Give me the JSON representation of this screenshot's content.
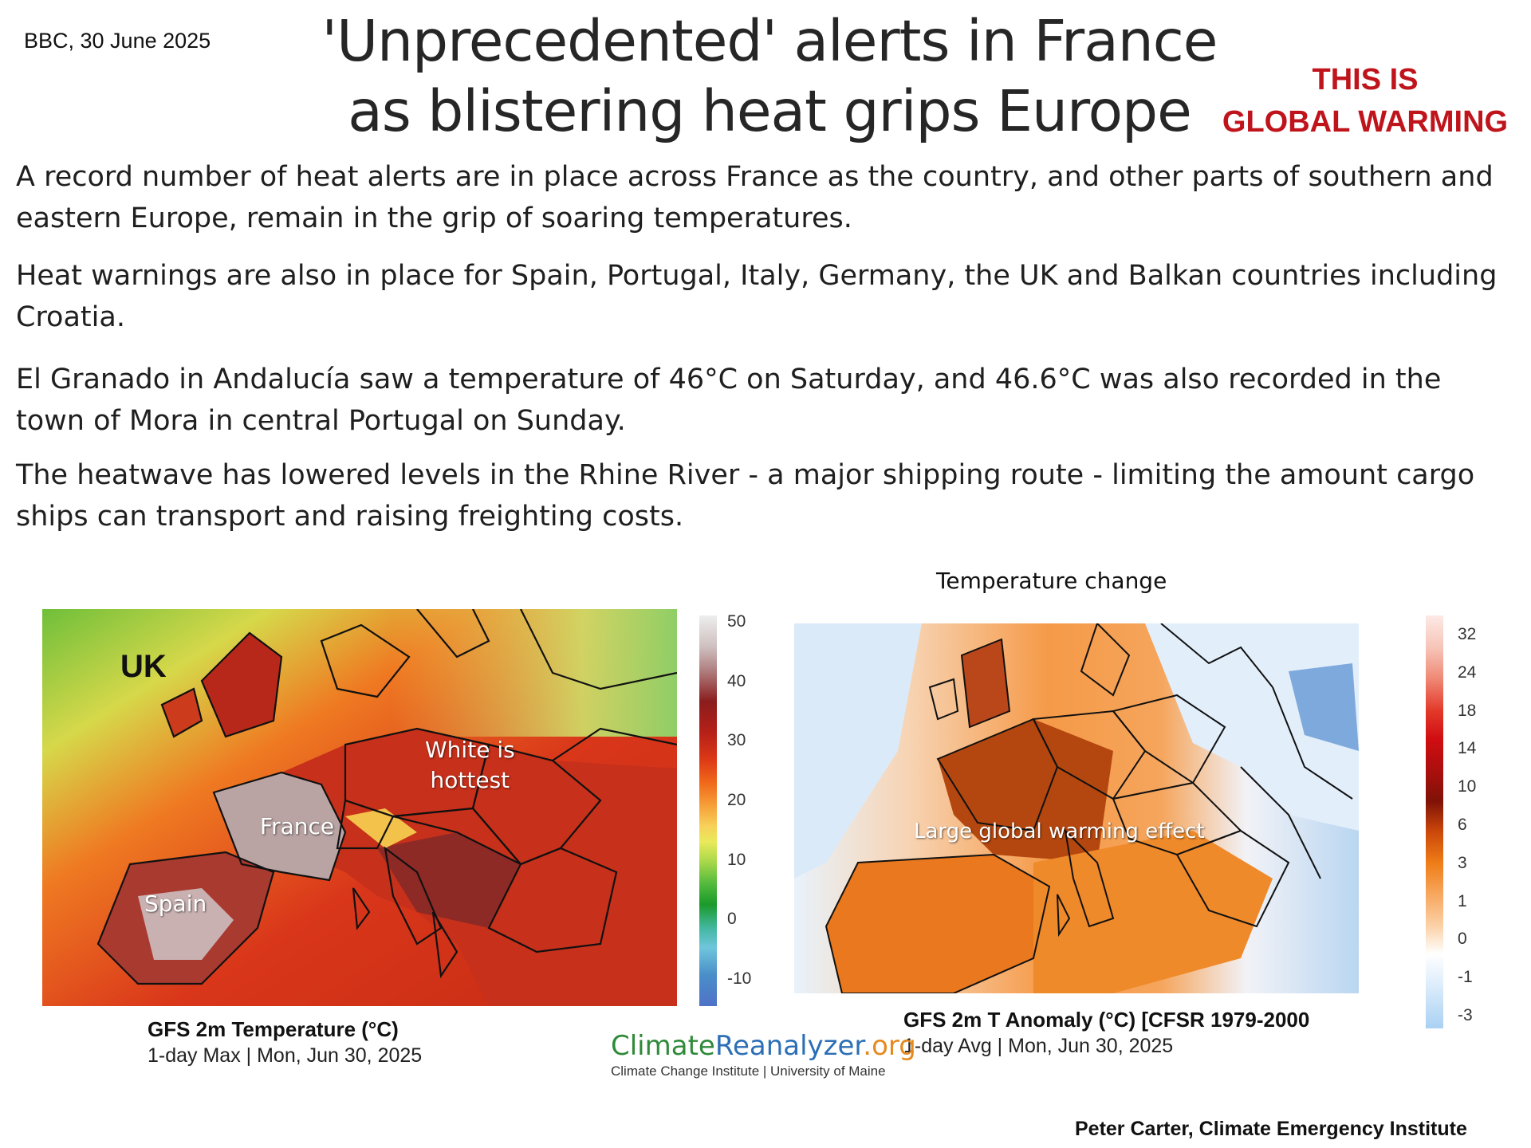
{
  "source_line": "BBC, 30 June 2025",
  "headline": {
    "line1": "'Unprecedented' alerts in France",
    "line2": "as blistering heat grips Europe"
  },
  "callout": {
    "line1": "THIS IS",
    "line2": "GLOBAL WARMING",
    "color": "#c0141c"
  },
  "paragraphs": [
    "A record number of heat alerts are in place across France as the country, and other parts of southern and eastern Europe, remain in the grip of soaring temperatures.",
    "Heat warnings are also in place for Spain, Portugal, Italy, Germany, the UK and Balkan countries including Croatia.",
    "El Granado in Andalucía saw a temperature of 46°C on Saturday, and 46.6°C was also recorded in the town of Mora in central Portugal on Sunday.",
    "The heatwave has lowered levels in the Rhine River - a major shipping route - limiting the amount cargo ships can transport and raising freighting costs."
  ],
  "temperature_map": {
    "labels": {
      "uk": "UK",
      "hottest_line1": "White is",
      "hottest_line2": "hottest",
      "france": "France",
      "spain": "Spain"
    },
    "colorbar_ticks": [
      "50",
      "40",
      "30",
      "20",
      "10",
      "0",
      "-10"
    ],
    "caption_title": "GFS 2m Temperature (°C)",
    "caption_sub": "1-day Max | Mon, Jun 30, 2025"
  },
  "anomaly_map": {
    "heading": "Temperature change",
    "labels": {
      "large_effect": "Large global warming effect"
    },
    "colorbar_ticks": [
      "32",
      "24",
      "18",
      "14",
      "10",
      "6",
      "3",
      "1",
      "0",
      "-1",
      "-3"
    ],
    "caption_title": "GFS 2m T Anomaly (°C) [CFSR 1979-2000",
    "caption_sub": "1-day Avg | Mon, Jun 30, 2025"
  },
  "logo": {
    "part1": "Climate",
    "part2": "Reanalyzer",
    "part3": ".org",
    "subtitle": "Climate Change Institute | University of Maine"
  },
  "credit": "Peter Carter, Climate Emergency Institute"
}
